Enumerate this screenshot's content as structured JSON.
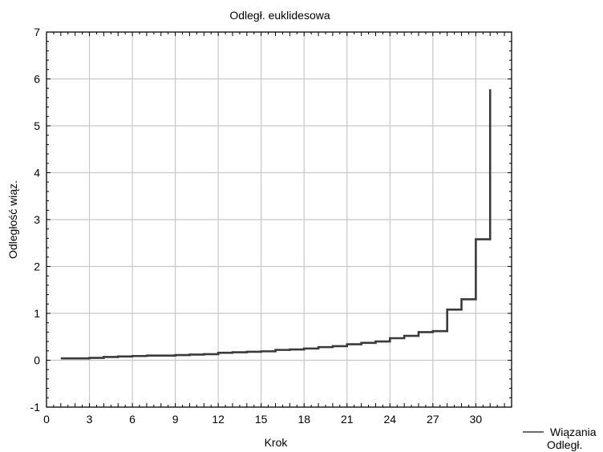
{
  "chart_data": {
    "type": "line",
    "step": true,
    "title": "Odległ. euklidesowa",
    "xlabel": "Krok",
    "ylabel": "Odległość wiąz.",
    "xlim": [
      0,
      32.5
    ],
    "ylim": [
      -1,
      7
    ],
    "xticks": [
      0,
      3,
      6,
      9,
      12,
      15,
      18,
      21,
      24,
      27,
      30
    ],
    "yticks": [
      -1,
      0,
      1,
      2,
      3,
      4,
      5,
      6,
      7
    ],
    "grid": true,
    "legend": {
      "placement": "bottom-right",
      "line1": "Wiązania",
      "line2": "Odległ."
    },
    "series": [
      {
        "name": "Wiązania Odległ.",
        "color": "#3a3a3a",
        "x": [
          1,
          2,
          3,
          4,
          5,
          6,
          7,
          8,
          9,
          10,
          11,
          12,
          13,
          14,
          15,
          16,
          17,
          18,
          19,
          20,
          21,
          22,
          23,
          24,
          25,
          26,
          27,
          28,
          29,
          30,
          31
        ],
        "y": [
          0.04,
          0.04,
          0.05,
          0.07,
          0.08,
          0.09,
          0.1,
          0.1,
          0.11,
          0.12,
          0.13,
          0.16,
          0.17,
          0.18,
          0.19,
          0.22,
          0.23,
          0.25,
          0.28,
          0.3,
          0.34,
          0.37,
          0.4,
          0.47,
          0.52,
          0.6,
          0.62,
          1.08,
          1.3,
          2.58,
          5.78
        ]
      }
    ]
  }
}
